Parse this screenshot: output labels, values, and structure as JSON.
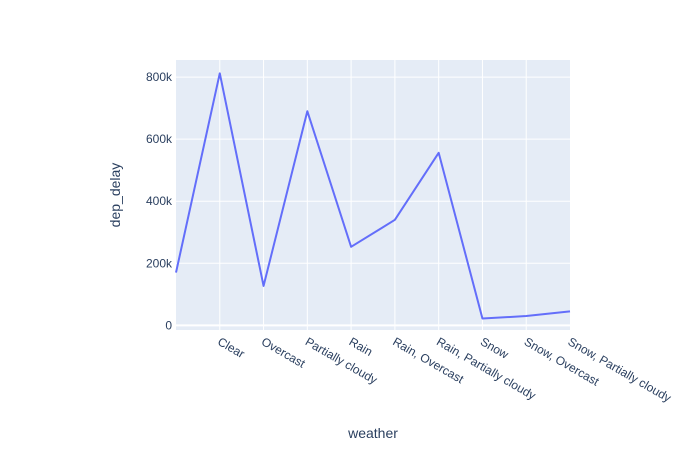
{
  "chart_data": {
    "type": "line",
    "xlabel": "weather",
    "ylabel": "dep_delay",
    "categories": [
      "",
      "Clear",
      "Overcast",
      "Partially cloudy",
      "Rain",
      "Rain, Overcast",
      "Rain, Partially cloudy",
      "Snow",
      "Snow, Overcast",
      "Snow, Partially cloudy"
    ],
    "values": [
      170000,
      812000,
      127000,
      690000,
      253000,
      340000,
      556000,
      22000,
      30000,
      45000
    ],
    "ylim": [
      -15000,
      855000
    ],
    "yticks": [
      0,
      200000,
      400000,
      600000,
      800000
    ],
    "ytick_labels": [
      "0",
      "200k",
      "400k",
      "600k",
      "800k"
    ],
    "grid": true,
    "legend": "none",
    "colors": {
      "line": "#636efa",
      "plot_bg": "#e5ecf6",
      "grid": "#ffffff",
      "text": "#2a3f5f"
    }
  }
}
